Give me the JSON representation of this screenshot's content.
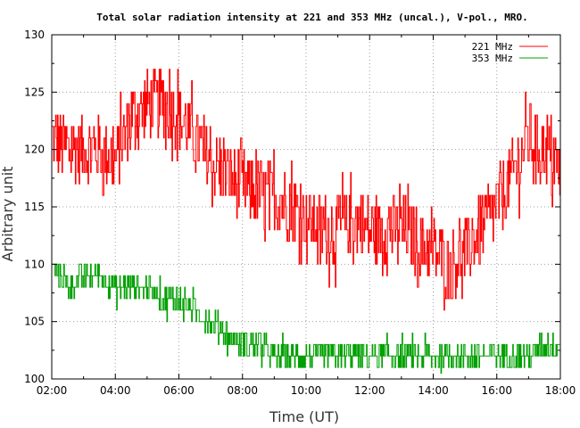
{
  "chart_data": {
    "type": "line",
    "title": "Total solar radiation intensity at 221 and 353 MHz (uncal.), V-pol., MRO.",
    "xlabel": "Time (UT)",
    "ylabel": "Arbitrary unit",
    "xlim": [
      "02:00",
      "18:00"
    ],
    "ylim": [
      100,
      130
    ],
    "x_ticks": [
      "02:00",
      "04:00",
      "06:00",
      "08:00",
      "10:00",
      "12:00",
      "14:00",
      "16:00",
      "18:00"
    ],
    "y_ticks": [
      "100",
      "105",
      "110",
      "115",
      "120",
      "125",
      "130"
    ],
    "grid": true,
    "legend_position": "top-right",
    "series": [
      {
        "name": "221 MHz",
        "color": "#ff0000",
        "x": [
          "02:00",
          "02:30",
          "03:00",
          "03:30",
          "04:00",
          "04:30",
          "05:00",
          "05:30",
          "06:00",
          "06:30",
          "07:00",
          "07:30",
          "08:00",
          "08:30",
          "09:00",
          "09:30",
          "10:00",
          "10:30",
          "11:00",
          "11:30",
          "12:00",
          "12:30",
          "13:00",
          "13:30",
          "14:00",
          "14:30",
          "15:00",
          "15:30",
          "16:00",
          "16:30",
          "17:00",
          "17:30",
          "18:00"
        ],
        "values": [
          121,
          120,
          120,
          120,
          119,
          123,
          124,
          124,
          123,
          121,
          119,
          118,
          117,
          116,
          116,
          115,
          114,
          113,
          113,
          114,
          113,
          113,
          113,
          112,
          111,
          110,
          111,
          113,
          115,
          118,
          121,
          120,
          118
        ],
        "noise": 3
      },
      {
        "name": "353 MHz",
        "color": "#00a000",
        "x": [
          "02:00",
          "02:30",
          "03:00",
          "03:30",
          "04:00",
          "04:30",
          "05:00",
          "05:30",
          "06:00",
          "06:30",
          "07:00",
          "07:30",
          "08:00",
          "08:30",
          "09:00",
          "09:30",
          "10:00",
          "10:30",
          "11:00",
          "11:30",
          "12:00",
          "12:30",
          "13:00",
          "13:30",
          "14:00",
          "14:30",
          "15:00",
          "15:30",
          "16:00",
          "16:30",
          "17:00",
          "17:30",
          "18:00"
        ],
        "values": [
          110,
          108,
          109,
          109,
          108,
          108,
          108,
          107,
          107,
          106,
          105,
          104,
          103,
          103,
          102,
          102,
          102,
          102,
          102,
          102,
          102,
          102,
          102,
          102,
          102,
          102,
          102,
          102,
          102,
          102,
          102,
          103,
          103
        ],
        "noise": 1
      }
    ]
  }
}
